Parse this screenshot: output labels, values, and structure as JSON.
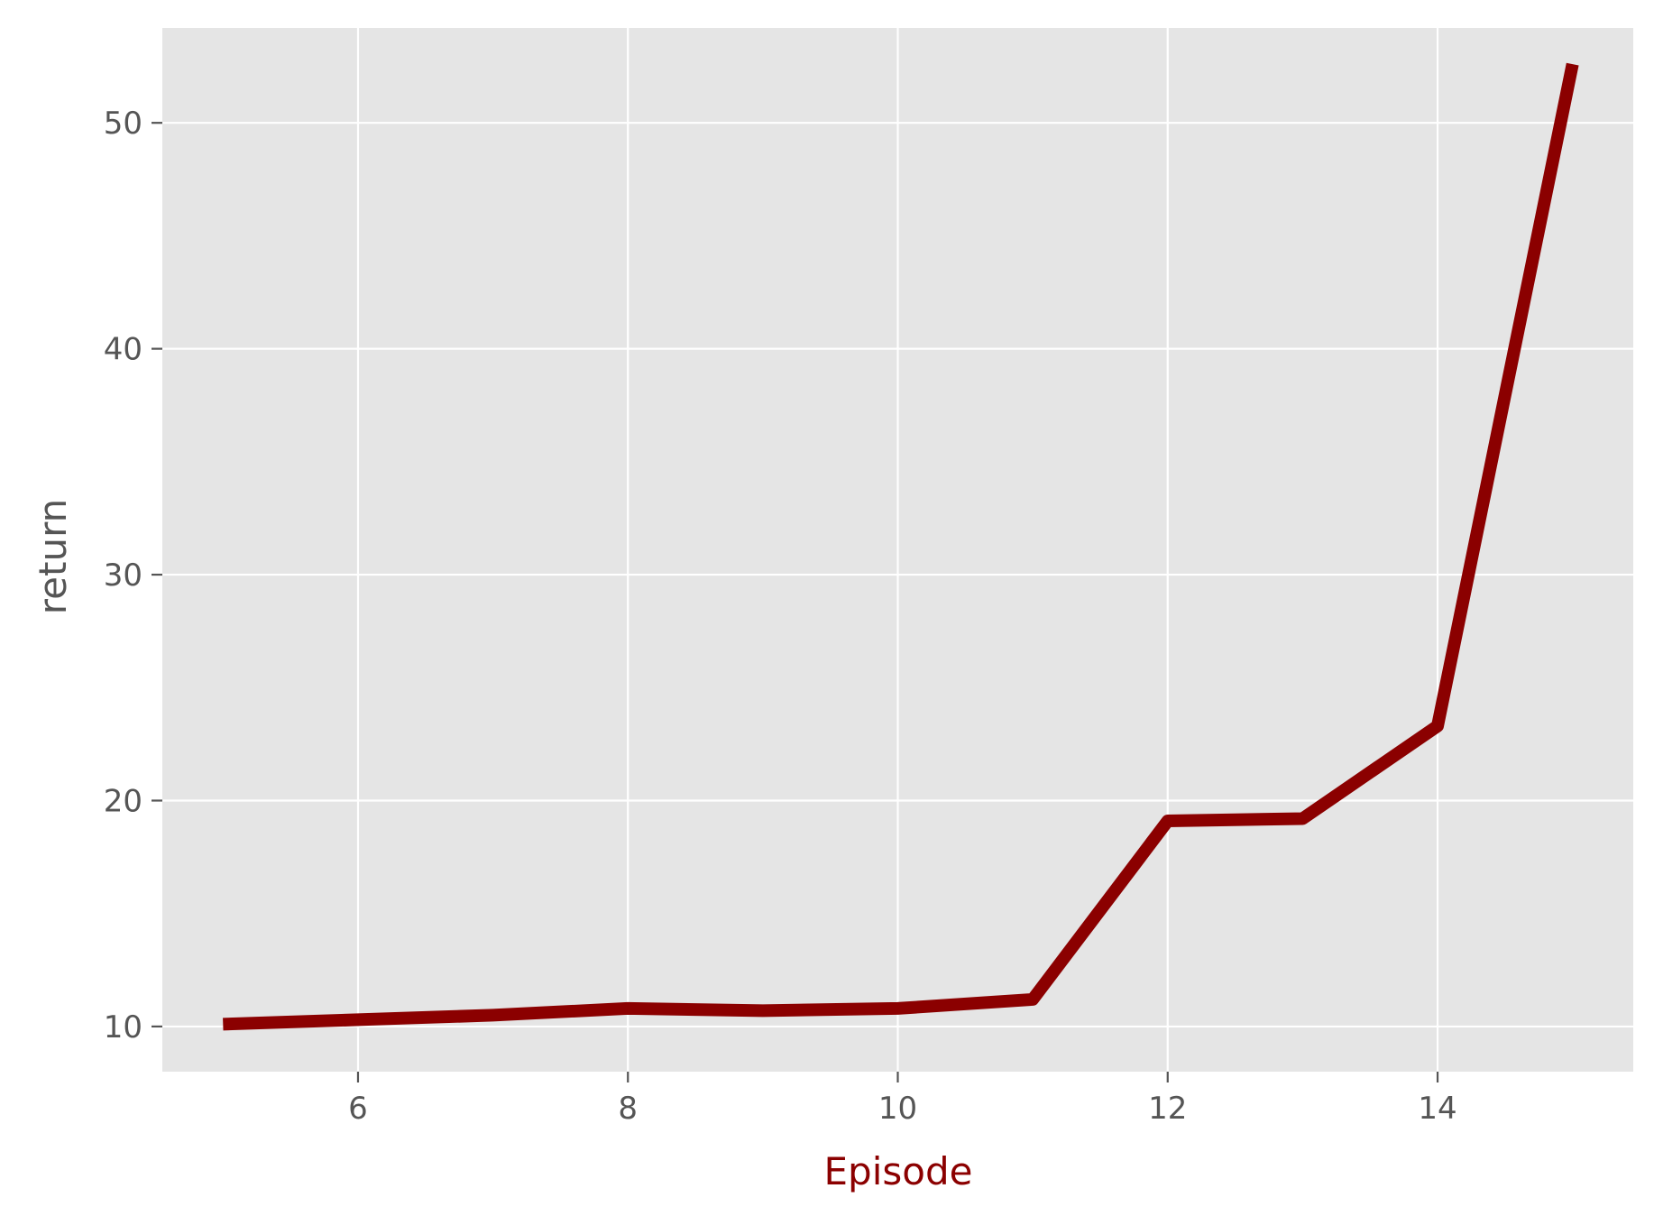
{
  "chart_data": {
    "type": "line",
    "title": "",
    "xlabel": "Episode",
    "ylabel": "return",
    "xlim": [
      4.55,
      15.45
    ],
    "ylim": [
      8.0,
      54.2
    ],
    "xticks": [
      6,
      8,
      10,
      12,
      14
    ],
    "yticks": [
      10,
      20,
      30,
      40,
      50
    ],
    "grid": true,
    "legend": "none",
    "colors": {
      "background": "#e5e5e5",
      "grid": "#ffffff",
      "line": "#8b0000",
      "xlabel": "#8b0000",
      "ylabel": "#555555",
      "ticks": "#555555"
    },
    "series": [
      {
        "x": [
          5,
          6,
          7,
          8,
          9,
          10,
          11,
          12,
          13,
          14,
          15
        ],
        "y": [
          10.1,
          10.3,
          10.5,
          10.8,
          10.7,
          10.8,
          11.2,
          19.1,
          19.2,
          23.3,
          52.6
        ]
      }
    ]
  }
}
